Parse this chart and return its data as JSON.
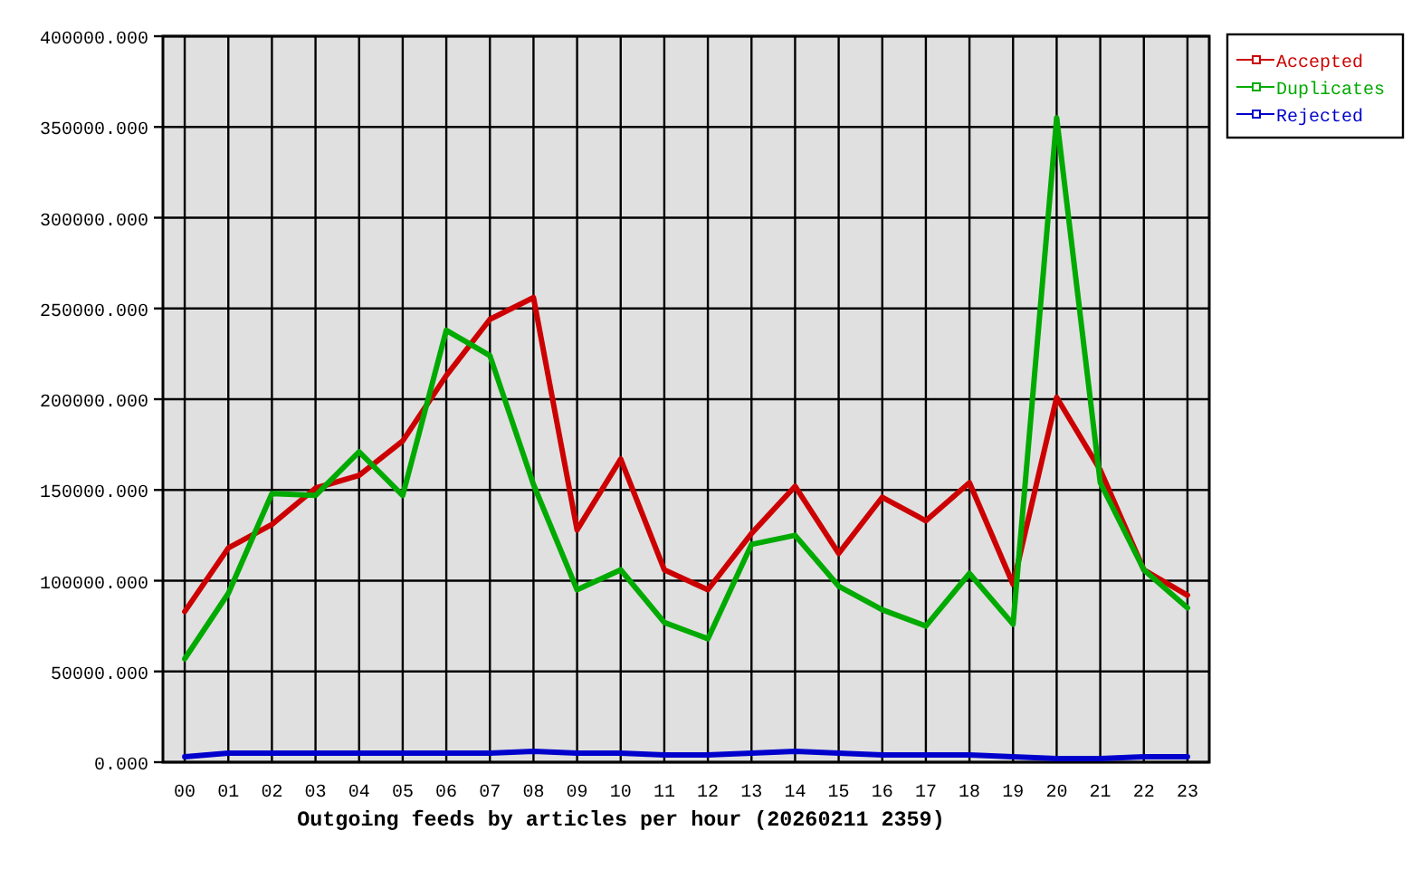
{
  "chart_data": {
    "type": "line",
    "xlabel": "Outgoing feeds by articles per hour (20260211 2359)",
    "categories": [
      "00",
      "01",
      "02",
      "03",
      "04",
      "05",
      "06",
      "07",
      "08",
      "09",
      "10",
      "11",
      "12",
      "13",
      "14",
      "15",
      "16",
      "17",
      "18",
      "19",
      "20",
      "21",
      "22",
      "23"
    ],
    "series": [
      {
        "name": "Accepted",
        "color": "#cc0000",
        "values": [
          83000,
          118000,
          131000,
          151000,
          158000,
          177000,
          213000,
          244000,
          256000,
          128000,
          167000,
          106000,
          95000,
          126000,
          152000,
          115000,
          146000,
          133000,
          154000,
          98000,
          201000,
          161000,
          106000,
          92000
        ]
      },
      {
        "name": "Duplicates",
        "color": "#00aa00",
        "values": [
          57000,
          93000,
          148000,
          147000,
          171000,
          147000,
          238000,
          224000,
          153000,
          95000,
          106000,
          77000,
          68000,
          120000,
          125000,
          97000,
          84000,
          75000,
          104000,
          76000,
          355000,
          154000,
          106000,
          85000
        ]
      },
      {
        "name": "Rejected",
        "color": "#0000cc",
        "values": [
          3000,
          5000,
          5000,
          5000,
          5000,
          5000,
          5000,
          5000,
          6000,
          5000,
          5000,
          4000,
          4000,
          5000,
          6000,
          5000,
          4000,
          4000,
          4000,
          3000,
          2000,
          2000,
          3000,
          3000
        ]
      }
    ],
    "ylim": [
      0,
      400000
    ],
    "yticks": [
      {
        "value": 0,
        "label": "0.000"
      },
      {
        "value": 50000,
        "label": "50000.000"
      },
      {
        "value": 100000,
        "label": "100000.000"
      },
      {
        "value": 150000,
        "label": "150000.000"
      },
      {
        "value": 200000,
        "label": "200000.000"
      },
      {
        "value": 250000,
        "label": "250000.000"
      },
      {
        "value": 300000,
        "label": "300000.000"
      },
      {
        "value": 350000,
        "label": "350000.000"
      },
      {
        "value": 400000,
        "label": "400000.000"
      }
    ],
    "grid": true,
    "legend": "top right"
  }
}
